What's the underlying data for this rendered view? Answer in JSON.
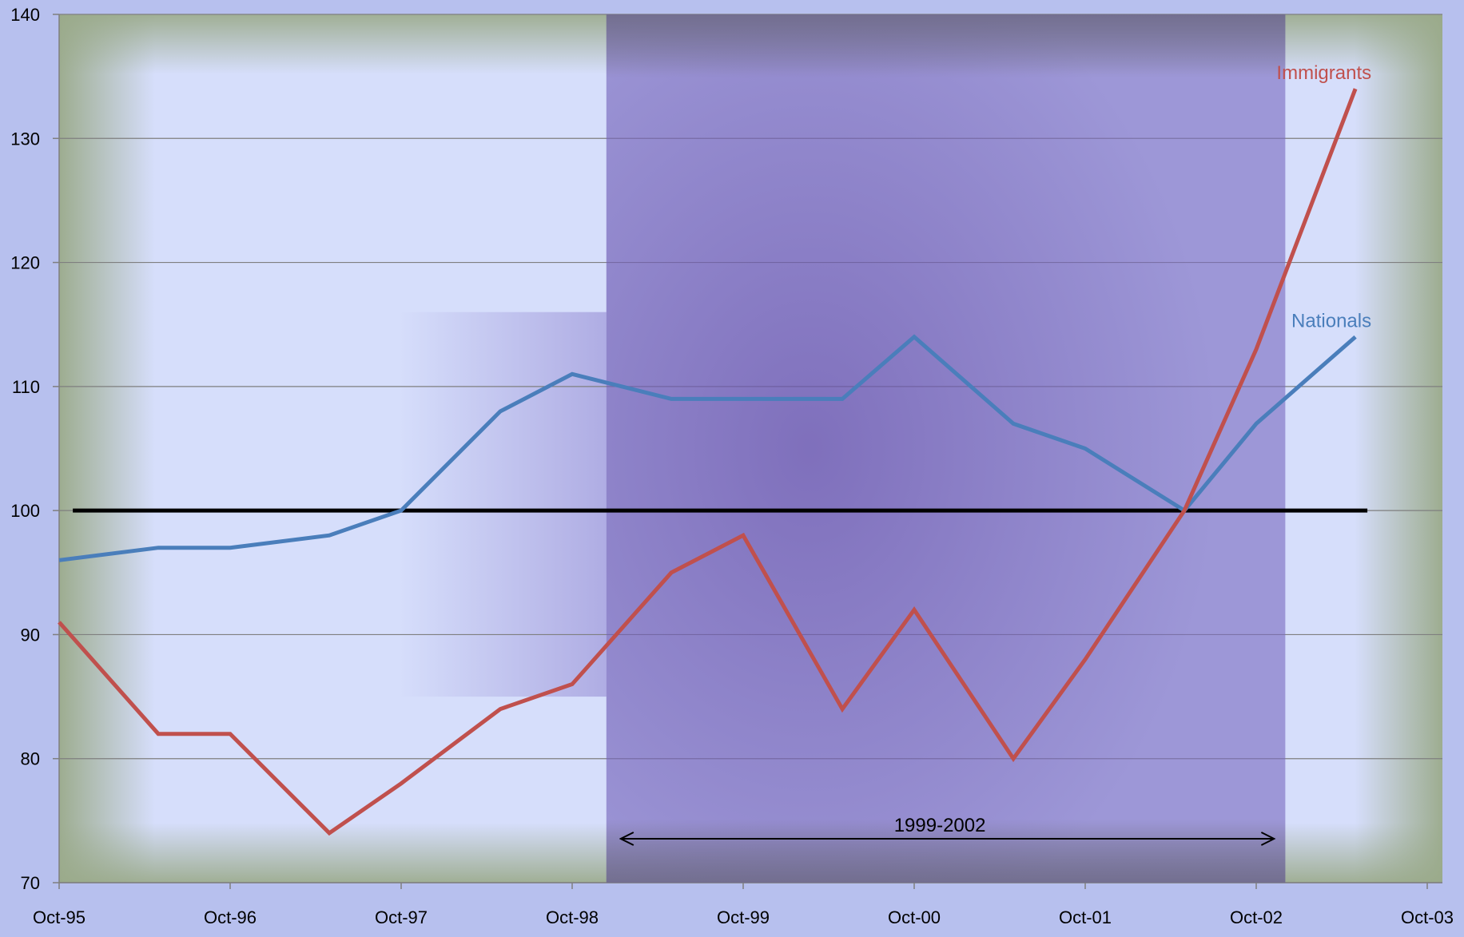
{
  "chart_data": {
    "type": "line",
    "title": "",
    "xlabel": "",
    "ylabel": "",
    "x_tick_labels": [
      "Oct-95",
      "Oct-96",
      "Oct-97",
      "Oct-98",
      "Oct-99",
      "Oct-00",
      "Oct-01",
      "Oct-02",
      "Oct-03"
    ],
    "ylim": [
      70,
      140
    ],
    "y_ticks": [
      70,
      80,
      90,
      100,
      110,
      120,
      130,
      140
    ],
    "grid": true,
    "x_values": [
      0.0,
      0.58,
      1.0,
      1.58,
      2.0,
      2.58,
      3.0,
      3.58,
      4.0,
      4.58,
      5.0,
      5.58,
      6.0,
      6.58,
      7.0,
      7.58
    ],
    "series": [
      {
        "name": "Nationals",
        "color": "#4a7ebb",
        "values": [
          96,
          97,
          97,
          98,
          100,
          108,
          111,
          109,
          109,
          109,
          114,
          107,
          105,
          100,
          107,
          114
        ]
      },
      {
        "name": "Immigrants",
        "color": "#c0504d",
        "values": [
          91,
          82,
          82,
          74,
          78,
          84,
          86,
          95,
          98,
          84,
          92,
          80,
          88,
          100,
          113,
          134
        ]
      }
    ],
    "reference_line": {
      "value": 100,
      "color": "#000000"
    },
    "shaded_period": {
      "from": 3.2,
      "to": 7.17,
      "label": "1999-2002",
      "color": "#7a6cc0"
    }
  }
}
